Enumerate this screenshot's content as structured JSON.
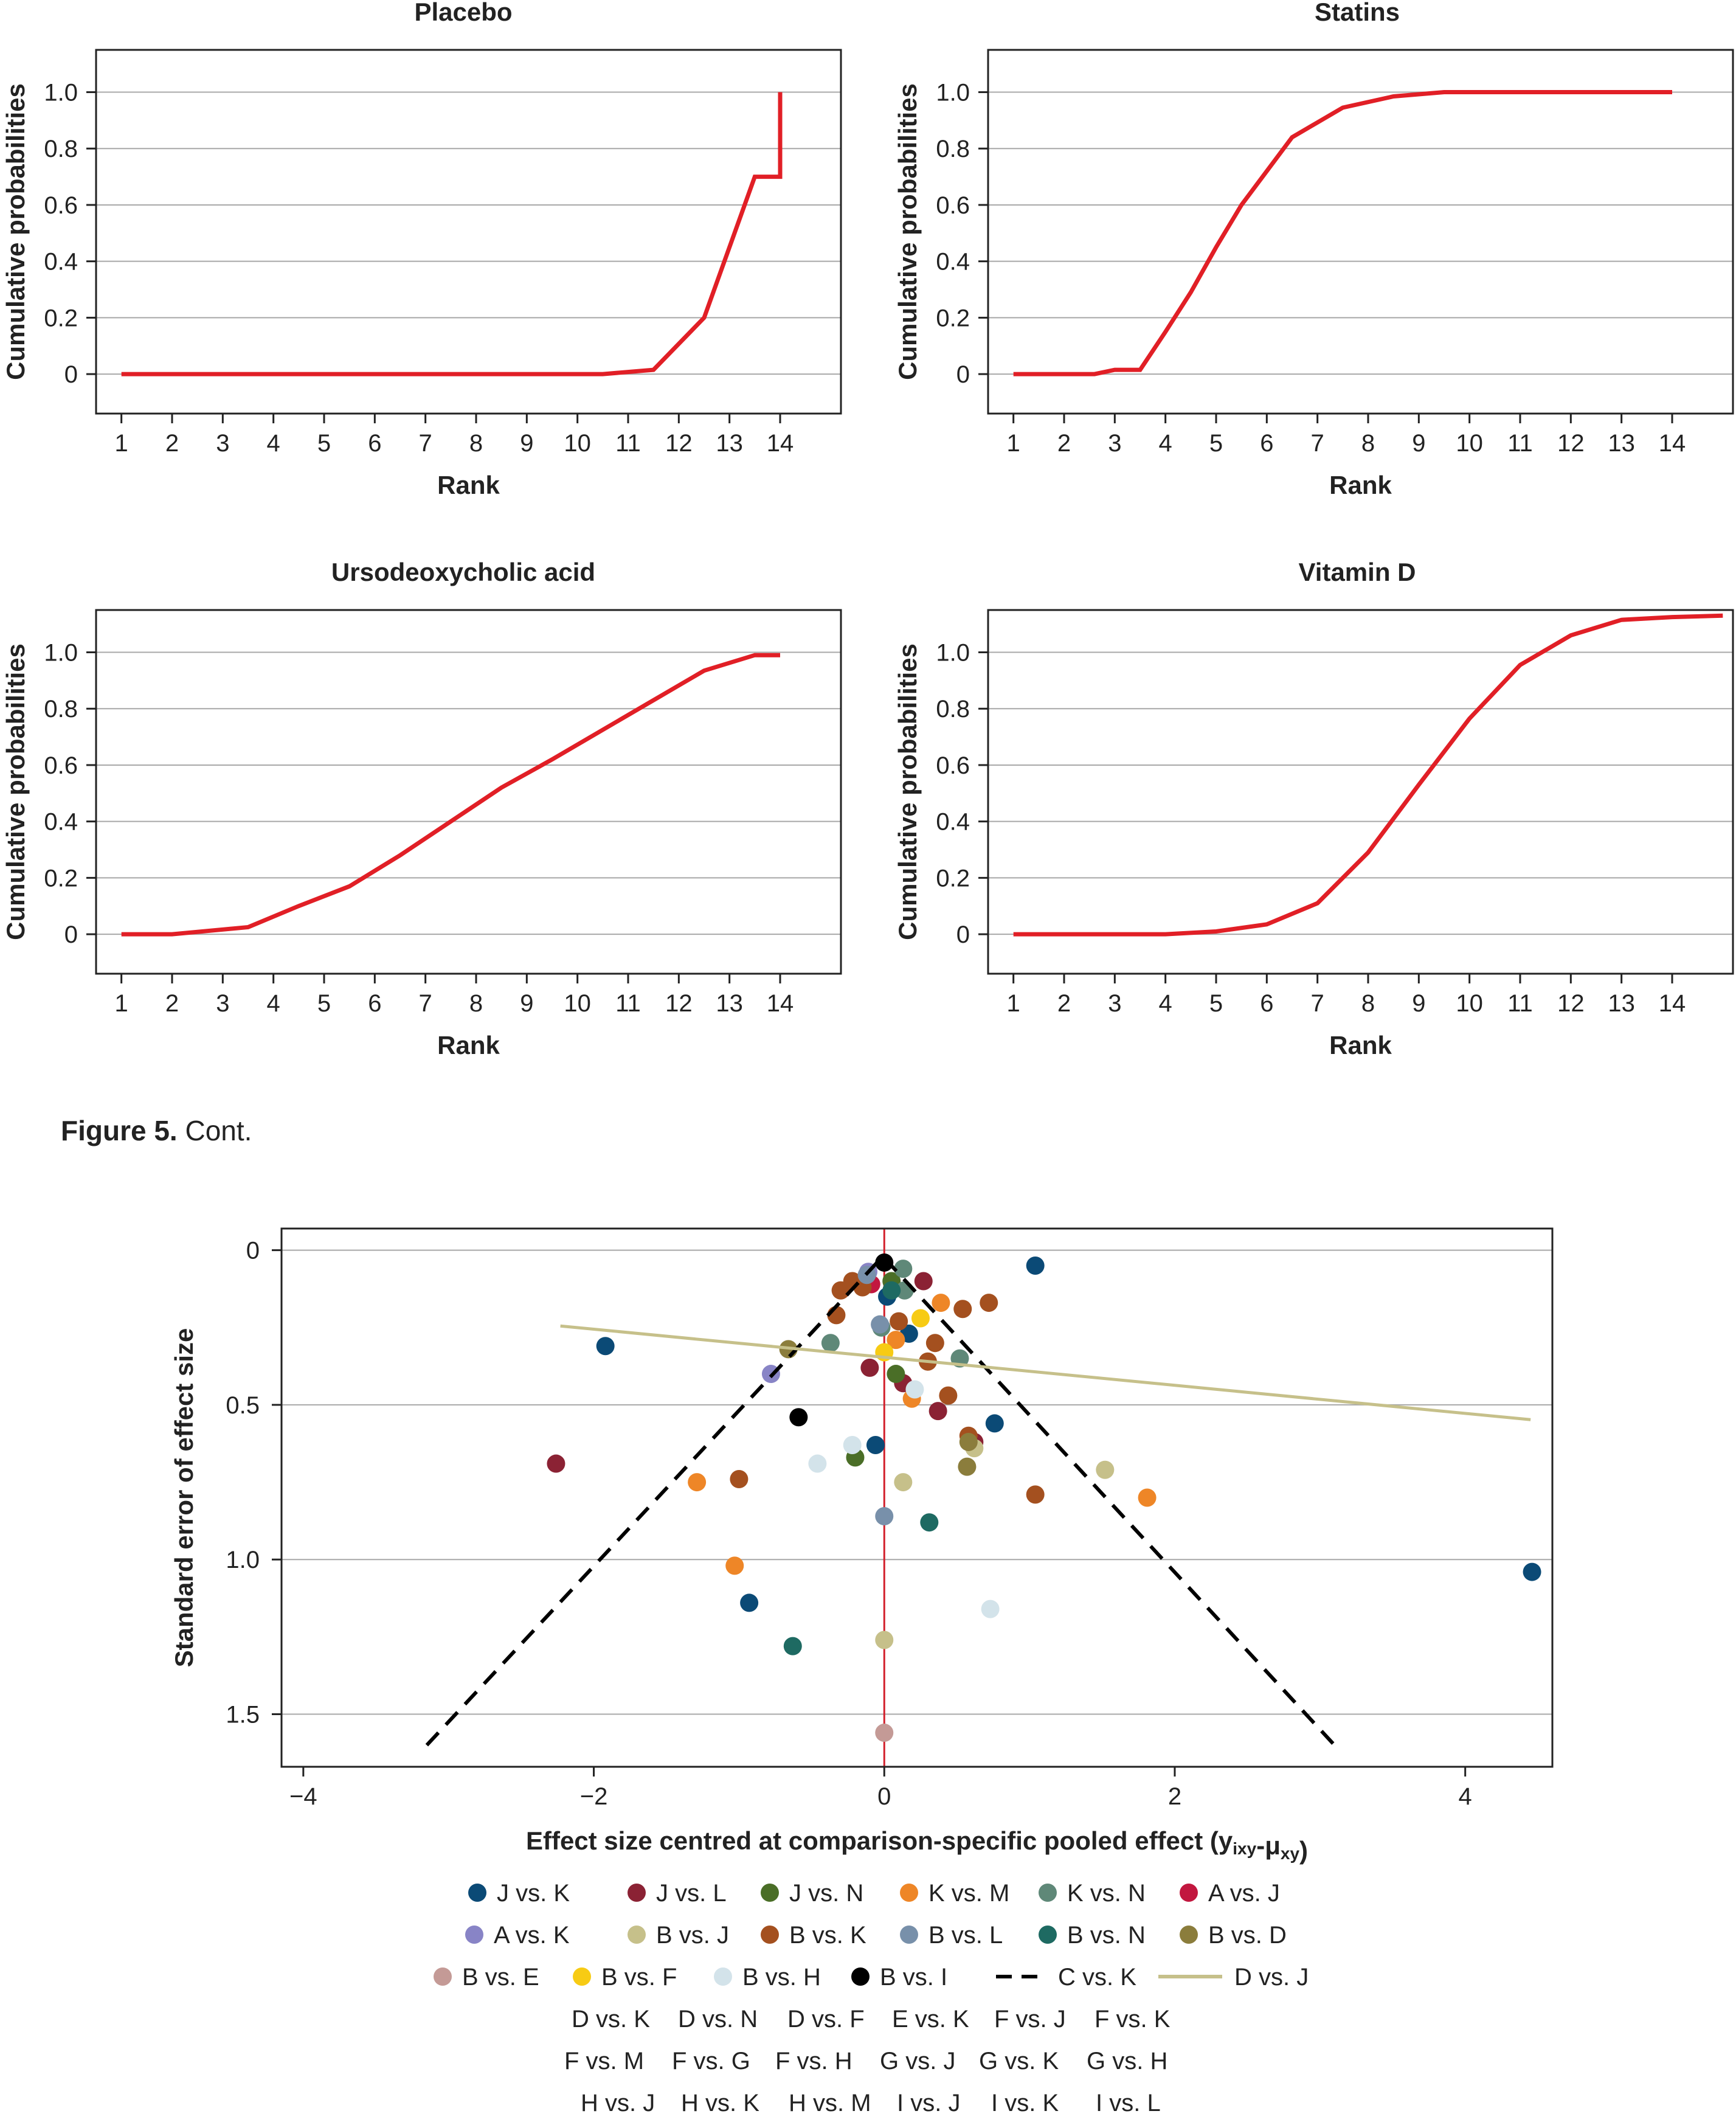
{
  "figure_caption": {
    "label": "Figure 5.",
    "text": "Cont."
  },
  "chart_data": [
    {
      "type": "line",
      "title": "Placebo",
      "xlabel": "Rank",
      "ylabel": "Cumulative probabilities",
      "xticks": [
        1,
        2,
        3,
        4,
        5,
        6,
        7,
        8,
        9,
        10,
        11,
        12,
        13,
        14
      ],
      "yticks": [
        0,
        0.2,
        0.4,
        0.6,
        0.8,
        1.0
      ],
      "ytick_labels": [
        "0",
        "0.2",
        "0.4",
        "0.6",
        "0.8",
        "1.0"
      ],
      "xlim": [
        0.5,
        15.2
      ],
      "ylim": [
        -0.14,
        1.15
      ],
      "grid": "horizontal",
      "line_color": "#e11f26",
      "x": [
        1,
        2,
        3,
        4,
        5,
        6,
        7,
        8,
        9,
        10,
        10.5,
        11.5,
        12.5,
        13.5,
        14,
        14
      ],
      "y": [
        0,
        0,
        0,
        0,
        0,
        0,
        0,
        0,
        0,
        0,
        0,
        0.015,
        0.2,
        0.7,
        0.7,
        1.0
      ]
    },
    {
      "type": "line",
      "title": "Statins",
      "xlabel": "Rank",
      "ylabel": "Cumulative probabilities",
      "xticks": [
        1,
        2,
        3,
        4,
        5,
        6,
        7,
        8,
        9,
        10,
        11,
        12,
        13,
        14
      ],
      "yticks": [
        0,
        0.2,
        0.4,
        0.6,
        0.8,
        1.0
      ],
      "ytick_labels": [
        "0",
        "0.2",
        "0.4",
        "0.6",
        "0.8",
        "1.0"
      ],
      "xlim": [
        0.5,
        15.2
      ],
      "ylim": [
        -0.14,
        1.15
      ],
      "grid": "horizontal",
      "line_color": "#e11f26",
      "x": [
        1,
        2,
        2.6,
        3,
        3.5,
        4,
        4.5,
        5,
        5.5,
        6.5,
        7.5,
        8.5,
        9.5,
        10,
        11,
        12,
        13,
        14
      ],
      "y": [
        0,
        0,
        0,
        0.015,
        0.015,
        0.15,
        0.29,
        0.45,
        0.6,
        0.84,
        0.945,
        0.985,
        1.0,
        1.0,
        1.0,
        1.0,
        1.0,
        1.0
      ]
    },
    {
      "type": "line",
      "title": "Ursodeoxycholic acid",
      "xlabel": "Rank",
      "ylabel": "Cumulative probabilities",
      "xticks": [
        1,
        2,
        3,
        4,
        5,
        6,
        7,
        8,
        9,
        10,
        11,
        12,
        13,
        14
      ],
      "yticks": [
        0,
        0.2,
        0.4,
        0.6,
        0.8,
        1.0
      ],
      "ytick_labels": [
        "0",
        "0.2",
        "0.4",
        "0.6",
        "0.8",
        "1.0"
      ],
      "xlim": [
        0.5,
        15.2
      ],
      "ylim": [
        -0.14,
        1.15
      ],
      "grid": "horizontal",
      "line_color": "#e11f26",
      "x": [
        1,
        2,
        3.5,
        4.5,
        5.5,
        6.5,
        7.5,
        8.5,
        9.5,
        10.5,
        11.5,
        12.5,
        13.5,
        14
      ],
      "y": [
        0,
        0,
        0.025,
        0.1,
        0.17,
        0.28,
        0.4,
        0.52,
        0.62,
        0.725,
        0.83,
        0.935,
        0.99,
        0.99
      ]
    },
    {
      "type": "line",
      "title": "Vitamin D",
      "xlabel": "Rank",
      "ylabel": "Cumulative probabilities",
      "xticks": [
        1,
        2,
        3,
        4,
        5,
        6,
        7,
        8,
        9,
        10,
        11,
        12,
        13,
        14
      ],
      "yticks": [
        0,
        0.2,
        0.4,
        0.6,
        0.8,
        1.0
      ],
      "ytick_labels": [
        "0",
        "0.2",
        "0.4",
        "0.6",
        "0.8",
        "1.0"
      ],
      "xlim": [
        0.5,
        15.2
      ],
      "ylim": [
        -0.14,
        1.15
      ],
      "grid": "horizontal",
      "line_color": "#e11f26",
      "x": [
        1,
        2,
        3,
        4,
        5,
        6,
        7,
        8,
        9,
        10,
        11,
        12,
        13,
        14,
        15
      ],
      "y": [
        0,
        0,
        0,
        0,
        0.01,
        0.035,
        0.11,
        0.29,
        0.53,
        0.765,
        0.955,
        1.06,
        1.115,
        1.125,
        1.13
      ]
    },
    {
      "type": "scatter",
      "title": "",
      "xlabel": "Effect size centred at comparison-specific pooled effect (y",
      "xlabel_sub1": "ixy",
      "xlabel_mid": "-μ",
      "xlabel_sub2": "xy",
      "xlabel_end": ")",
      "ylabel": "Standard error of effect size",
      "xticks": [
        -4,
        -2,
        0,
        2,
        4
      ],
      "xtick_labels": [
        "−4",
        "−2",
        "0",
        "2",
        "4"
      ],
      "yticks": [
        0,
        0.5,
        1.0,
        1.5
      ],
      "ytick_labels": [
        "0",
        "0.5",
        "1.0",
        "1.5"
      ],
      "xlim": [
        -4.15,
        4.6
      ],
      "ylim": [
        1.67,
        -0.07
      ],
      "y_axis_reversed": true,
      "grid": "horizontal",
      "reference_line": {
        "x": 0,
        "color": "#d21f2b"
      },
      "series_colors": {
        "J vs. K": "#0b4a76",
        "J vs. L": "#8b2234",
        "J vs. N": "#4a6e27",
        "K vs. M": "#ee8627",
        "K vs. N": "#5f8878",
        "A vs. J": "#c2173f",
        "A vs. K": "#8884c6",
        "B vs. J": "#c6c08a",
        "B vs. K": "#a4501f",
        "B vs. L": "#7890aa",
        "B vs. N": "#1e6a62",
        "B vs. D": "#8b7d3c",
        "B vs. E": "#c49a96",
        "B vs. F": "#f7cb14",
        "B vs. H": "#d3e3ea",
        "B vs. I": "#000000"
      },
      "points": [
        {
          "s": "J vs. K",
          "x": 1.04,
          "y": 0.05
        },
        {
          "s": "J vs. K",
          "x": -1.92,
          "y": 0.31
        },
        {
          "s": "J vs. K",
          "x": 0.76,
          "y": 0.56
        },
        {
          "s": "J vs. K",
          "x": -0.06,
          "y": 0.63
        },
        {
          "s": "J vs. K",
          "x": 4.46,
          "y": 1.04
        },
        {
          "s": "J vs. K",
          "x": -0.93,
          "y": 1.14
        },
        {
          "s": "J vs. K",
          "x": 0.17,
          "y": 0.27
        },
        {
          "s": "J vs. K",
          "x": 0.02,
          "y": 0.15
        },
        {
          "s": "J vs. L",
          "x": -2.26,
          "y": 0.69
        },
        {
          "s": "J vs. L",
          "x": 0.27,
          "y": 0.1
        },
        {
          "s": "J vs. L",
          "x": -0.1,
          "y": 0.38
        },
        {
          "s": "J vs. L",
          "x": 0.37,
          "y": 0.52
        },
        {
          "s": "J vs. L",
          "x": 0.62,
          "y": 0.62
        },
        {
          "s": "J vs. L",
          "x": 0.13,
          "y": 0.43
        },
        {
          "s": "J vs. N",
          "x": 0.08,
          "y": 0.4
        },
        {
          "s": "J vs. N",
          "x": -0.2,
          "y": 0.67
        },
        {
          "s": "J vs. N",
          "x": 0.05,
          "y": 0.1
        },
        {
          "s": "K vs. M",
          "x": 0.39,
          "y": 0.17
        },
        {
          "s": "K vs. M",
          "x": -1.29,
          "y": 0.75
        },
        {
          "s": "K vs. M",
          "x": -1.03,
          "y": 1.02
        },
        {
          "s": "K vs. M",
          "x": 1.81,
          "y": 0.8
        },
        {
          "s": "K vs. M",
          "x": 0.19,
          "y": 0.48
        },
        {
          "s": "K vs. M",
          "x": 0.08,
          "y": 0.29
        },
        {
          "s": "K vs. N",
          "x": 0.13,
          "y": 0.06
        },
        {
          "s": "K vs. N",
          "x": -0.37,
          "y": 0.3
        },
        {
          "s": "K vs. N",
          "x": 0.52,
          "y": 0.35
        },
        {
          "s": "K vs. N",
          "x": 0.14,
          "y": 0.13
        },
        {
          "s": "K vs. N",
          "x": -0.02,
          "y": 0.25
        },
        {
          "s": "A vs. J",
          "x": -0.09,
          "y": 0.11
        },
        {
          "s": "A vs. K",
          "x": -0.78,
          "y": 0.4
        },
        {
          "s": "A vs. K",
          "x": -0.11,
          "y": 0.07
        },
        {
          "s": "B vs. J",
          "x": 0.13,
          "y": 0.75
        },
        {
          "s": "B vs. J",
          "x": 1.52,
          "y": 0.71
        },
        {
          "s": "B vs. J",
          "x": 0.0,
          "y": 1.26
        },
        {
          "s": "B vs. J",
          "x": 0.62,
          "y": 0.64
        },
        {
          "s": "B vs. K",
          "x": -0.3,
          "y": 0.13
        },
        {
          "s": "B vs. K",
          "x": -0.22,
          "y": 0.1
        },
        {
          "s": "B vs. K",
          "x": -0.15,
          "y": 0.12
        },
        {
          "s": "B vs. K",
          "x": 0.54,
          "y": 0.19
        },
        {
          "s": "B vs. K",
          "x": 0.72,
          "y": 0.17
        },
        {
          "s": "B vs. K",
          "x": 0.35,
          "y": 0.3
        },
        {
          "s": "B vs. K",
          "x": 0.58,
          "y": 0.6
        },
        {
          "s": "B vs. K",
          "x": 1.04,
          "y": 0.79
        },
        {
          "s": "B vs. K",
          "x": -1.0,
          "y": 0.74
        },
        {
          "s": "B vs. K",
          "x": -0.33,
          "y": 0.21
        },
        {
          "s": "B vs. K",
          "x": 0.1,
          "y": 0.23
        },
        {
          "s": "B vs. K",
          "x": 0.3,
          "y": 0.36
        },
        {
          "s": "B vs. K",
          "x": 0.44,
          "y": 0.47
        },
        {
          "s": "B vs. L",
          "x": 0.0,
          "y": 0.86
        },
        {
          "s": "B vs. L",
          "x": -0.03,
          "y": 0.24
        },
        {
          "s": "B vs. L",
          "x": -0.12,
          "y": 0.08
        },
        {
          "s": "B vs. N",
          "x": 0.31,
          "y": 0.88
        },
        {
          "s": "B vs. N",
          "x": -0.63,
          "y": 1.28
        },
        {
          "s": "B vs. N",
          "x": 0.05,
          "y": 0.13
        },
        {
          "s": "B vs. D",
          "x": -0.66,
          "y": 0.32
        },
        {
          "s": "B vs. D",
          "x": 0.57,
          "y": 0.7
        },
        {
          "s": "B vs. D",
          "x": 0.58,
          "y": 0.62
        },
        {
          "s": "B vs. E",
          "x": 0.0,
          "y": 1.56
        },
        {
          "s": "B vs. F",
          "x": 0.25,
          "y": 0.22
        },
        {
          "s": "B vs. F",
          "x": 0.0,
          "y": 0.33
        },
        {
          "s": "B vs. H",
          "x": -0.46,
          "y": 0.69
        },
        {
          "s": "B vs. H",
          "x": 0.73,
          "y": 1.16
        },
        {
          "s": "B vs. H",
          "x": -0.22,
          "y": 0.63
        },
        {
          "s": "B vs. H",
          "x": 0.21,
          "y": 0.45
        },
        {
          "s": "B vs. I",
          "x": -0.59,
          "y": 0.54
        },
        {
          "s": "B vs. I",
          "x": 0.0,
          "y": 0.04
        }
      ],
      "lines": [
        {
          "name": "C vs. K",
          "style": "dashed",
          "color": "#000000",
          "x": [
            -3.15,
            -0.01,
            3.1
          ],
          "y": [
            1.6,
            0.02,
            1.6
          ]
        },
        {
          "name": "D vs. J",
          "style": "solid",
          "color": "#c6c08a",
          "x": [
            -2.23,
            4.45
          ],
          "y": [
            0.245,
            0.548
          ]
        }
      ],
      "legend": {
        "rows": [
          [
            {
              "label": "J vs. K",
              "kind": "dot",
              "color": "#0b4a76"
            },
            {
              "label": "J vs. L",
              "kind": "dot",
              "color": "#8b2234"
            },
            {
              "label": "J vs. N",
              "kind": "dot",
              "color": "#4a6e27"
            },
            {
              "label": "K vs. M",
              "kind": "dot",
              "color": "#ee8627"
            },
            {
              "label": "K vs. N",
              "kind": "dot",
              "color": "#5f8878"
            },
            {
              "label": "A vs. J",
              "kind": "dot",
              "color": "#c2173f"
            }
          ],
          [
            {
              "label": "A vs. K",
              "kind": "dot",
              "color": "#8884c6"
            },
            {
              "label": "B vs. J",
              "kind": "dot",
              "color": "#c6c08a"
            },
            {
              "label": "B vs. K",
              "kind": "dot",
              "color": "#a4501f"
            },
            {
              "label": "B vs. L",
              "kind": "dot",
              "color": "#7890aa"
            },
            {
              "label": "B vs. N",
              "kind": "dot",
              "color": "#1e6a62"
            },
            {
              "label": "B vs. D",
              "kind": "dot",
              "color": "#8b7d3c"
            }
          ],
          [
            {
              "label": "B vs. E",
              "kind": "dot",
              "color": "#c49a96"
            },
            {
              "label": "B vs. F",
              "kind": "dot",
              "color": "#f7cb14"
            },
            {
              "label": "B vs. H",
              "kind": "dot",
              "color": "#d3e3ea"
            },
            {
              "label": "B vs. I",
              "kind": "dot",
              "color": "#000000"
            },
            {
              "label": "C vs. K",
              "kind": "dash",
              "color": "#000000"
            },
            {
              "label": "D vs. J",
              "kind": "line",
              "color": "#c6c08a"
            }
          ],
          [
            {
              "label": "D vs. K"
            },
            {
              "label": "D vs. N"
            },
            {
              "label": "D vs. F"
            },
            {
              "label": "E vs. K"
            },
            {
              "label": "F vs. J"
            },
            {
              "label": "F vs. K"
            }
          ],
          [
            {
              "label": "F vs. M"
            },
            {
              "label": "F vs. G"
            },
            {
              "label": "F vs. H"
            },
            {
              "label": "G vs. J"
            },
            {
              "label": "G vs. K"
            },
            {
              "label": "G vs. H"
            }
          ],
          [
            {
              "label": "H vs. J"
            },
            {
              "label": "H vs. K"
            },
            {
              "label": "H vs. M"
            },
            {
              "label": "I vs. J"
            },
            {
              "label": "I vs. K"
            },
            {
              "label": "I vs. L"
            }
          ]
        ]
      }
    }
  ]
}
